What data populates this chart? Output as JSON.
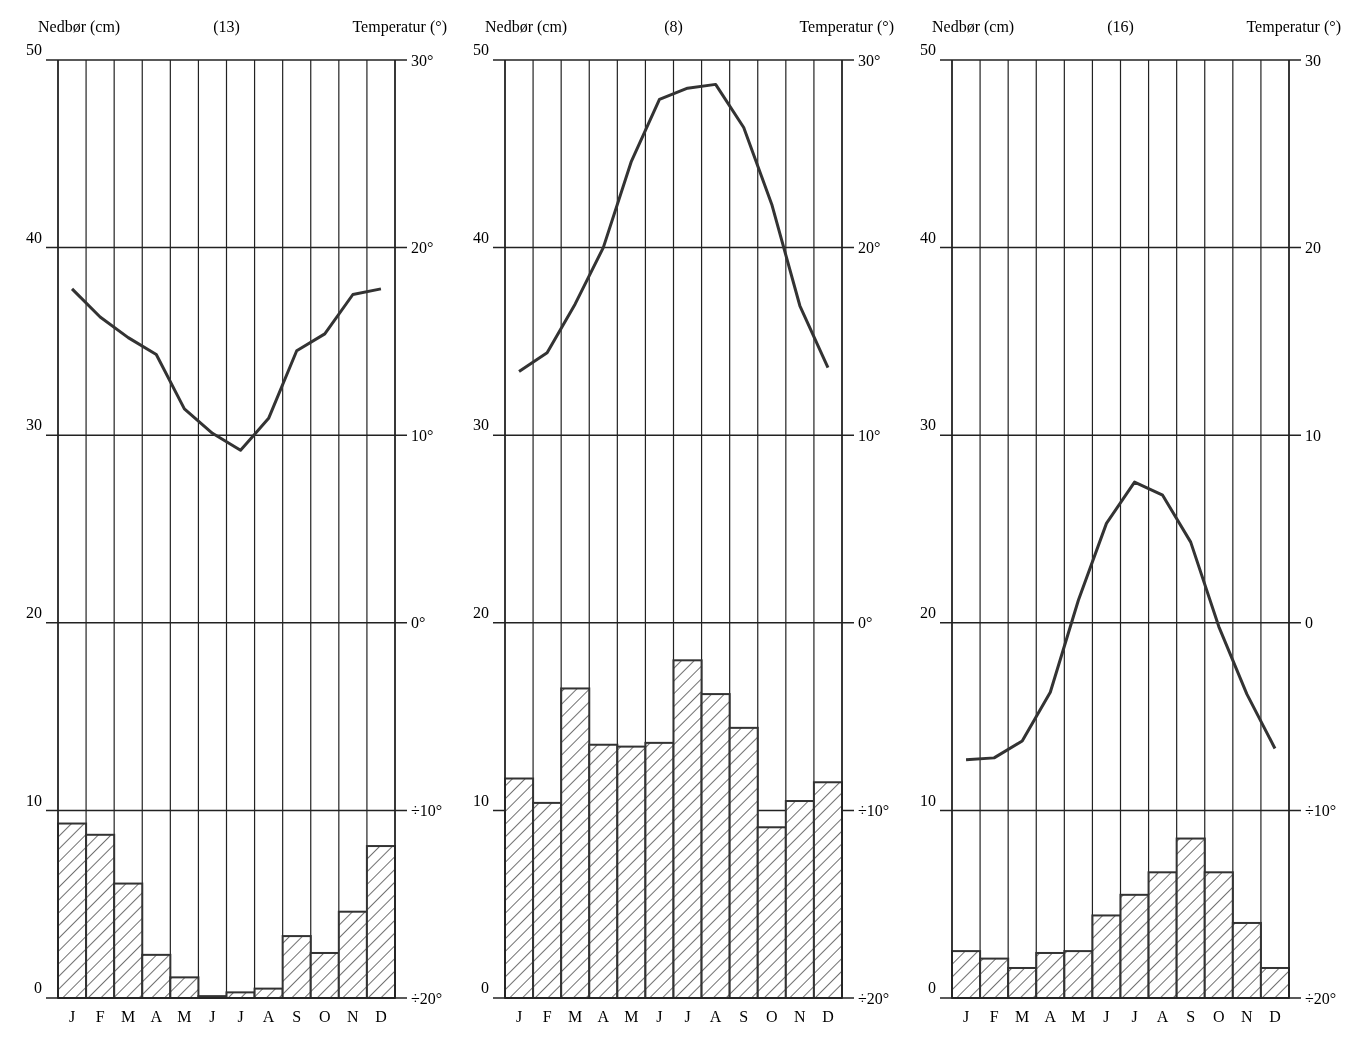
{
  "chart_data": [
    {
      "type": "bar",
      "title": "(13)",
      "ylabel": "Nedbør (cm)",
      "y2label": "Temperatur (°)",
      "categories": [
        "J",
        "F",
        "M",
        "A",
        "M",
        "J",
        "J",
        "A",
        "S",
        "O",
        "N",
        "D"
      ],
      "series": [
        {
          "color": "#333333",
          "values": [
            9.3,
            8.7,
            6.1,
            2.3,
            1.1,
            0.1,
            0.3,
            0.5,
            3.3,
            2.4,
            4.6,
            8.1
          ]
        },
        {
          "type": "line",
          "axis": "y2",
          "color": "#333333",
          "values": [
            17.8,
            16.3,
            15.2,
            14.3,
            11.4,
            10.1,
            9.2,
            10.9,
            14.5,
            15.4,
            17.5,
            17.8
          ]
        }
      ],
      "ylim": [
        0,
        50
      ],
      "yticks": [
        0,
        10,
        20,
        30,
        40,
        50
      ],
      "y2lim": [
        -20,
        30
      ],
      "y2ticks": [
        {
          "value": -20,
          "label": "÷20°"
        },
        {
          "value": -10,
          "label": "÷10°"
        },
        {
          "value": 0,
          "label": "0°"
        },
        {
          "value": 10,
          "label": "10°"
        },
        {
          "value": 20,
          "label": "20°"
        },
        {
          "value": 30,
          "label": "30°"
        }
      ],
      "grid": true,
      "marker": "none"
    },
    {
      "type": "bar",
      "title": "(8)",
      "ylabel": "Nedbør (cm)",
      "y2label": "Temperatur (°)",
      "categories": [
        "J",
        "F",
        "M",
        "A",
        "M",
        "J",
        "J",
        "A",
        "S",
        "O",
        "N",
        "D"
      ],
      "series": [
        {
          "color": "#333333",
          "values": [
            11.7,
            10.4,
            16.5,
            13.5,
            13.4,
            13.6,
            18.0,
            16.2,
            14.4,
            9.1,
            10.5,
            11.5
          ]
        },
        {
          "type": "line",
          "axis": "y2",
          "color": "#333333",
          "values": [
            13.4,
            14.4,
            17.0,
            20.0,
            24.6,
            27.9,
            28.5,
            28.7,
            26.4,
            22.3,
            16.9,
            13.6
          ]
        }
      ],
      "ylim": [
        0,
        50
      ],
      "yticks": [
        0,
        10,
        20,
        30,
        40,
        50
      ],
      "y2lim": [
        -20,
        30
      ],
      "y2ticks": [
        {
          "value": -20,
          "label": "÷20°"
        },
        {
          "value": -10,
          "label": "÷10°"
        },
        {
          "value": 0,
          "label": "0°"
        },
        {
          "value": 10,
          "label": "10°"
        },
        {
          "value": 20,
          "label": "20°"
        },
        {
          "value": 30,
          "label": "30°"
        }
      ],
      "grid": true,
      "marker": "none"
    },
    {
      "type": "bar",
      "title": "(16)",
      "ylabel": "Nedbør (cm)",
      "y2label": "Temperatur (°)",
      "categories": [
        "J",
        "F",
        "M",
        "A",
        "M",
        "J",
        "J",
        "A",
        "S",
        "O",
        "N",
        "D"
      ],
      "series": [
        {
          "color": "#333333",
          "values": [
            2.5,
            2.1,
            1.6,
            2.4,
            2.5,
            4.4,
            5.5,
            6.7,
            8.5,
            6.7,
            4.0,
            1.6
          ]
        },
        {
          "type": "line",
          "axis": "y2",
          "color": "#333333",
          "values": [
            -7.3,
            -7.2,
            -6.3,
            -3.7,
            1.2,
            5.3,
            7.5,
            6.8,
            4.3,
            -0.2,
            -3.8,
            -6.7
          ]
        }
      ],
      "ylim": [
        0,
        50
      ],
      "yticks": [
        0,
        10,
        20,
        30,
        40,
        50
      ],
      "y2lim": [
        -20,
        30
      ],
      "y2ticks": [
        {
          "value": -20,
          "label": "÷20°"
        },
        {
          "value": -10,
          "label": "÷10°"
        },
        {
          "value": 0,
          "label": "0"
        },
        {
          "value": 10,
          "label": "10"
        },
        {
          "value": 20,
          "label": "20"
        },
        {
          "value": 30,
          "label": "30"
        }
      ],
      "grid": true,
      "marker": "none"
    }
  ]
}
